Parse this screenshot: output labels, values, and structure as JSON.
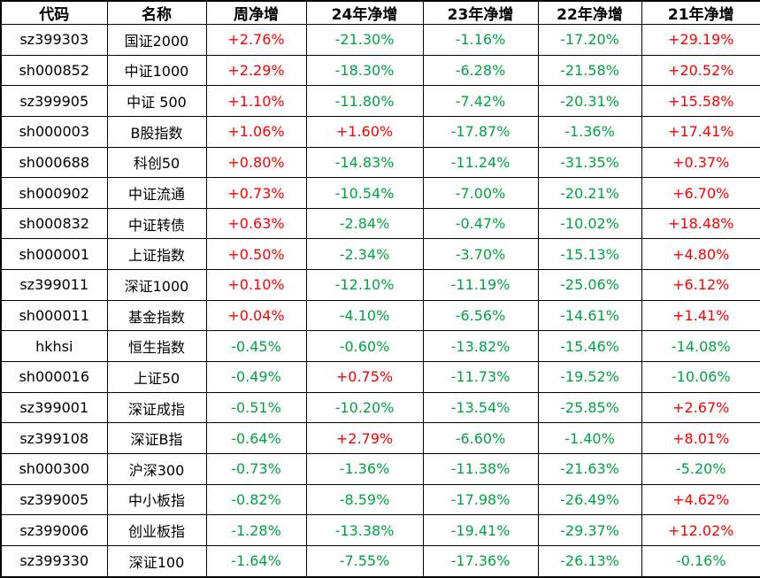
{
  "colors": {
    "positive": "#ff0000",
    "negative": "#00a443",
    "grid": "#000000",
    "text": "#000000",
    "background": "#ffffff"
  },
  "chart_data": {
    "type": "table",
    "columns": [
      "代码",
      "名称",
      "周净增",
      "24年净增",
      "23年净增",
      "22年净增",
      "21年净增"
    ],
    "rows": [
      [
        "sz399303",
        "国证2000",
        "+2.76%",
        "-21.30%",
        "-1.16%",
        "-17.20%",
        "+29.19%"
      ],
      [
        "sh000852",
        "中证1000",
        "+2.29%",
        "-18.30%",
        "-6.28%",
        "-21.58%",
        "+20.52%"
      ],
      [
        "sz399905",
        "中证 500",
        "+1.10%",
        "-11.80%",
        "-7.42%",
        "-20.31%",
        "+15.58%"
      ],
      [
        "sh000003",
        "B股指数",
        "+1.06%",
        "+1.60%",
        "-17.87%",
        "-1.36%",
        "+17.41%"
      ],
      [
        "sh000688",
        "科创50",
        "+0.80%",
        "-14.83%",
        "-11.24%",
        "-31.35%",
        "+0.37%"
      ],
      [
        "sh000902",
        "中证流通",
        "+0.73%",
        "-10.54%",
        "-7.00%",
        "-20.21%",
        "+6.70%"
      ],
      [
        "sh000832",
        "中证转债",
        "+0.63%",
        "-2.84%",
        "-0.47%",
        "-10.02%",
        "+18.48%"
      ],
      [
        "sh000001",
        "上证指数",
        "+0.50%",
        "-2.34%",
        "-3.70%",
        "-15.13%",
        "+4.80%"
      ],
      [
        "sz399011",
        "深证1000",
        "+0.10%",
        "-12.10%",
        "-11.19%",
        "-25.06%",
        "+6.12%"
      ],
      [
        "sh000011",
        "基金指数",
        "+0.04%",
        "-4.10%",
        "-6.56%",
        "-14.61%",
        "+1.41%"
      ],
      [
        "hkhsi",
        "恒生指数",
        "-0.45%",
        "-0.60%",
        "-13.82%",
        "-15.46%",
        "-14.08%"
      ],
      [
        "sh000016",
        "上证50",
        "-0.49%",
        "+0.75%",
        "-11.73%",
        "-19.52%",
        "-10.06%"
      ],
      [
        "sz399001",
        "深证成指",
        "-0.51%",
        "-10.20%",
        "-13.54%",
        "-25.85%",
        "+2.67%"
      ],
      [
        "sz399108",
        "深证B指",
        "-0.64%",
        "+2.79%",
        "-6.60%",
        "-1.40%",
        "+8.01%"
      ],
      [
        "sh000300",
        "沪深300",
        "-0.73%",
        "-1.36%",
        "-11.38%",
        "-21.63%",
        "-5.20%"
      ],
      [
        "sz399005",
        "中小板指",
        "-0.82%",
        "-8.59%",
        "-17.98%",
        "-26.49%",
        "+4.62%"
      ],
      [
        "sz399006",
        "创业板指",
        "-1.28%",
        "-13.38%",
        "-19.41%",
        "-29.37%",
        "+12.02%"
      ],
      [
        "sz399330",
        "深证100",
        "-1.64%",
        "-7.55%",
        "-17.36%",
        "-26.13%",
        "-0.16%"
      ]
    ]
  }
}
